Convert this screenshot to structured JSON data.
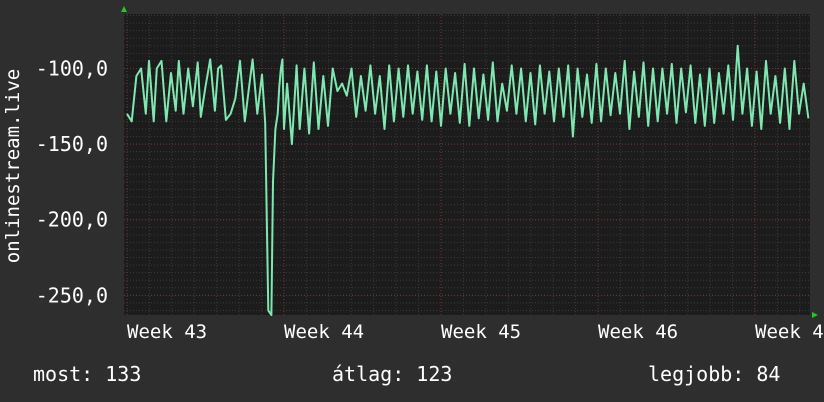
{
  "chart_data": {
    "type": "line",
    "ylabel": "onlinestream.live",
    "ylim": [
      -263,
      -64
    ],
    "yticks": [
      {
        "value": -100,
        "label": "-100,0"
      },
      {
        "value": -150,
        "label": "-150,0"
      },
      {
        "value": -200,
        "label": "-200,0"
      },
      {
        "value": -250,
        "label": "-250,0"
      }
    ],
    "xlim": [
      0,
      4.4
    ],
    "xticks": [
      {
        "value": 0,
        "label": "Week 43"
      },
      {
        "value": 1,
        "label": "Week 44"
      },
      {
        "value": 2,
        "label": "Week 45"
      },
      {
        "value": 3,
        "label": "Week 46"
      },
      {
        "value": 4,
        "label": "Week 4"
      }
    ],
    "grid": true,
    "series": [
      {
        "color": "#7ee8b0",
        "x": [
          0,
          0.03,
          0.06,
          0.09,
          0.12,
          0.14,
          0.17,
          0.19,
          0.22,
          0.25,
          0.28,
          0.31,
          0.33,
          0.36,
          0.39,
          0.42,
          0.45,
          0.47,
          0.5,
          0.53,
          0.56,
          0.58,
          0.6,
          0.63,
          0.66,
          0.69,
          0.72,
          0.75,
          0.78,
          0.8,
          0.83,
          0.86,
          0.88,
          0.9,
          0.92,
          0.93,
          0.945,
          0.96,
          0.97,
          0.98,
          0.99,
          1.0,
          1.02,
          1.05,
          1.08,
          1.1,
          1.13,
          1.16,
          1.19,
          1.22,
          1.25,
          1.28,
          1.31,
          1.34,
          1.37,
          1.4,
          1.43,
          1.46,
          1.49,
          1.52,
          1.55,
          1.58,
          1.61,
          1.64,
          1.67,
          1.7,
          1.73,
          1.76,
          1.79,
          1.82,
          1.85,
          1.88,
          1.91,
          1.94,
          1.97,
          2.0,
          2.03,
          2.06,
          2.09,
          2.12,
          2.15,
          2.18,
          2.21,
          2.24,
          2.27,
          2.3,
          2.33,
          2.36,
          2.39,
          2.42,
          2.45,
          2.48,
          2.51,
          2.54,
          2.57,
          2.6,
          2.63,
          2.66,
          2.69,
          2.72,
          2.75,
          2.78,
          2.81,
          2.84,
          2.87,
          2.9,
          2.93,
          2.96,
          2.99,
          3.02,
          3.05,
          3.08,
          3.11,
          3.14,
          3.17,
          3.2,
          3.23,
          3.26,
          3.29,
          3.32,
          3.35,
          3.38,
          3.41,
          3.44,
          3.47,
          3.5,
          3.53,
          3.56,
          3.59,
          3.62,
          3.65,
          3.68,
          3.71,
          3.74,
          3.77,
          3.8,
          3.83,
          3.86,
          3.89,
          3.92,
          3.95,
          3.98,
          4.01,
          4.04,
          4.07,
          4.1,
          4.13,
          4.16,
          4.19,
          4.22,
          4.25,
          4.28,
          4.31,
          4.34
        ],
        "values": [
          -130,
          -135,
          -105,
          -100,
          -130,
          -95,
          -135,
          -100,
          -95,
          -135,
          -103,
          -128,
          -95,
          -130,
          -100,
          -125,
          -96,
          -132,
          -112,
          -94,
          -128,
          -100,
          -98,
          -134,
          -130,
          -120,
          -95,
          -135,
          -110,
          -94,
          -130,
          -104,
          -136,
          -260,
          -263,
          -175,
          -140,
          -130,
          -112,
          -100,
          -94,
          -140,
          -110,
          -150,
          -98,
          -140,
          -100,
          -143,
          -96,
          -140,
          -105,
          -138,
          -100,
          -115,
          -110,
          -118,
          -100,
          -132,
          -105,
          -128,
          -98,
          -130,
          -105,
          -140,
          -98,
          -135,
          -100,
          -132,
          -98,
          -130,
          -102,
          -134,
          -98,
          -135,
          -102,
          -138,
          -100,
          -130,
          -103,
          -136,
          -97,
          -138,
          -100,
          -133,
          -104,
          -134,
          -96,
          -135,
          -110,
          -128,
          -98,
          -130,
          -100,
          -135,
          -103,
          -137,
          -98,
          -130,
          -102,
          -135,
          -100,
          -132,
          -98,
          -145,
          -100,
          -132,
          -104,
          -136,
          -97,
          -135,
          -100,
          -131,
          -103,
          -130,
          -95,
          -140,
          -102,
          -132,
          -96,
          -138,
          -100,
          -135,
          -100,
          -130,
          -97,
          -136,
          -100,
          -129,
          -98,
          -136,
          -104,
          -138,
          -100,
          -136,
          -103,
          -130,
          -98,
          -134,
          -85,
          -130,
          -100,
          -138,
          -102,
          -140,
          -95,
          -130,
          -105,
          -136,
          -100,
          -140,
          -95,
          -130,
          -110,
          -133
        ]
      }
    ]
  },
  "footer": {
    "current": "most: 133",
    "average": "átlag: 123",
    "best": "legjobb: 84"
  },
  "colors": {
    "background": "#2e2e2e",
    "plot": "#1c1c1c",
    "grid_minor": "#3a3a3a",
    "grid_major": "#6b3a3a",
    "axis_arrow": "#22c922",
    "line": "#7ee8b0"
  }
}
